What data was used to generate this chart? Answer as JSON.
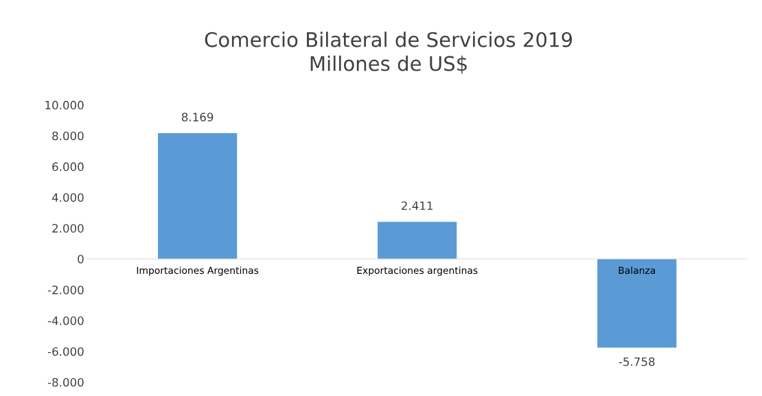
{
  "chart_data": {
    "type": "bar",
    "title": "Comercio Bilateral de Servicios 2019\nMillones de US$",
    "categories": [
      "Importaciones Argentinas",
      "Exportaciones argentinas",
      "Balanza"
    ],
    "values": [
      8169,
      2411,
      -5758
    ],
    "color": "#5b9bd5",
    "value_labels": [
      "8.169",
      "2.411",
      "-5.758"
    ],
    "ylim": [
      -8000,
      10000
    ],
    "yticks": [
      {
        "value": -8000,
        "label": "-8.000"
      },
      {
        "value": -6000,
        "label": "-6.000"
      },
      {
        "value": -4000,
        "label": "-4.000"
      },
      {
        "value": -2000,
        "label": "-2.000"
      },
      {
        "value": 0,
        "label": "0"
      },
      {
        "value": 2000,
        "label": "2.000"
      },
      {
        "value": 4000,
        "label": "4.000"
      },
      {
        "value": 6000,
        "label": "6.000"
      },
      {
        "value": 8000,
        "label": "8.000"
      },
      {
        "value": 10000,
        "label": "10.000"
      }
    ],
    "grid": false
  }
}
